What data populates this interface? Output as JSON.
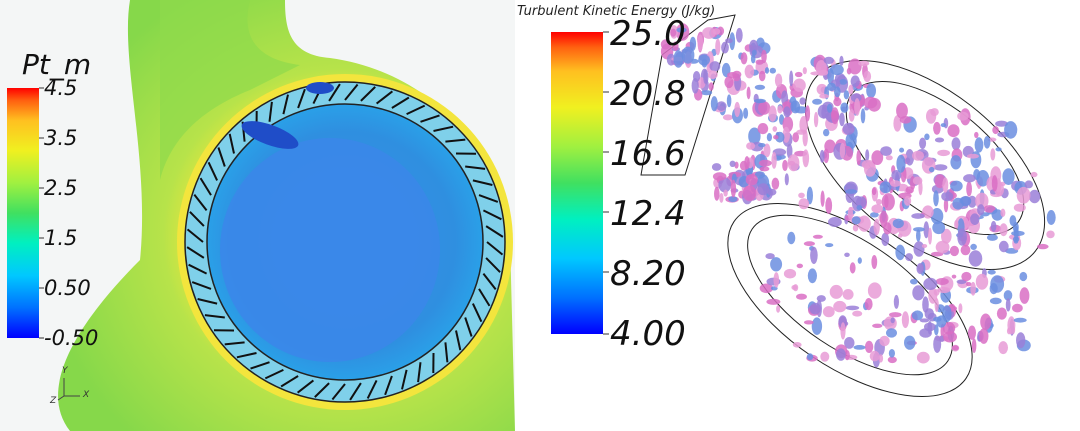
{
  "left_view": {
    "legend_title": "Pt_m",
    "ticks": [
      "4.5",
      "3.5",
      "2.5",
      "1.5",
      "0.50",
      "-0.50"
    ],
    "axis_labels": {
      "y": "Y",
      "x": "X",
      "z": "Z"
    },
    "colors": {
      "background_field": "#86d84a",
      "outer_band": "#f0ea3c",
      "inner_fluid": "#2f8fe0",
      "core": "#3a88e8",
      "hot_spot": "#1f4dc8"
    }
  },
  "right_view": {
    "legend_title": "Turbulent Kinetic Energy (J/kg)",
    "ticks": [
      "25.0",
      "20.8",
      "16.6",
      "12.4",
      "8.20",
      "4.00"
    ],
    "colors": {
      "iso_surface": "#d96fc4",
      "iso_alt": "#6b8ee0"
    }
  },
  "colorbar_stops": [
    "#0000ff",
    "#0070ff",
    "#00c8ff",
    "#00f0c0",
    "#40e060",
    "#a0f040",
    "#f0f020",
    "#ffc020",
    "#ff6010",
    "#ff0000"
  ]
}
